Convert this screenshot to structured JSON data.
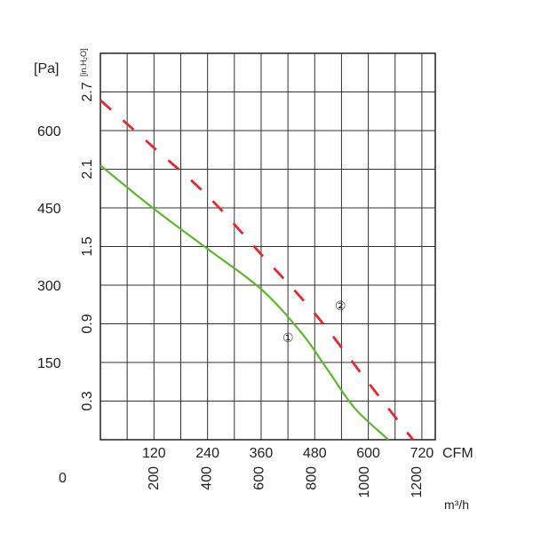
{
  "chart_data": {
    "type": "line",
    "title": "",
    "x_axes": [
      {
        "unit": "CFM",
        "ticks": [
          "120",
          "240",
          "360",
          "480",
          "600",
          "720"
        ]
      },
      {
        "unit": "m³/h",
        "ticks": [
          "200",
          "400",
          "600",
          "800",
          "1000",
          "1200"
        ]
      }
    ],
    "origin_label": "0",
    "y_axes": [
      {
        "unit": "[Pa]",
        "ticks": [
          "150",
          "300",
          "450",
          "600"
        ]
      },
      {
        "unit": "[in.H₂O]",
        "ticks": [
          "0.3",
          "0.9",
          "1.5",
          "2.1",
          "2.7"
        ]
      }
    ],
    "xlim": [
      0,
      750
    ],
    "ylim": [
      0,
      765
    ],
    "grid": true,
    "series": [
      {
        "name": "①",
        "style": "solid",
        "color": "#5cb82e",
        "x": [
          0,
          120,
          240,
          360,
          450,
          510,
          570,
          645
        ],
        "y": [
          543,
          457,
          378,
          298,
          212,
          137,
          62,
          0
        ]
      },
      {
        "name": "②",
        "style": "dashed",
        "color": "#e8262e",
        "x": [
          0,
          120,
          240,
          360,
          480,
          600,
          700
        ],
        "y": [
          672,
          578,
          483,
          367,
          250,
          113,
          0
        ]
      }
    ]
  }
}
